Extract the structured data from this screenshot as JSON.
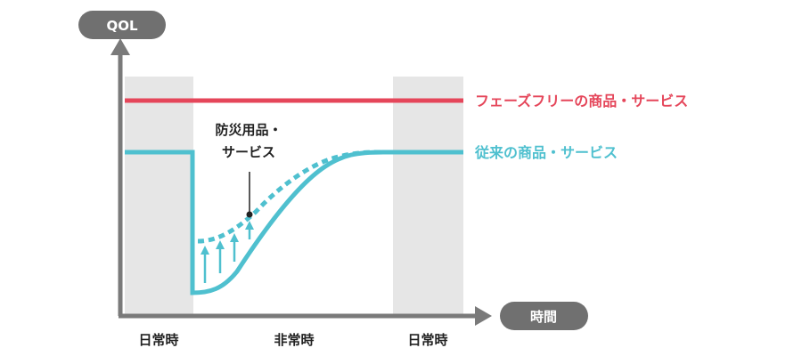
{
  "axes": {
    "y_label": "QOL",
    "x_label": "時間"
  },
  "periods": [
    "日常時",
    "非常時",
    "日常時"
  ],
  "series": {
    "phase_free": {
      "label": "フェーズフリーの商品・サービス",
      "color": "#e5465a"
    },
    "conventional": {
      "label": "従来の商品・サービス",
      "color": "#4fc0cf"
    }
  },
  "annotation": {
    "line1": "防災用品・",
    "line2": "サービス"
  },
  "colors": {
    "axis": "#7a7a7a",
    "pill": "#707070",
    "band": "#e6e6e6"
  }
}
